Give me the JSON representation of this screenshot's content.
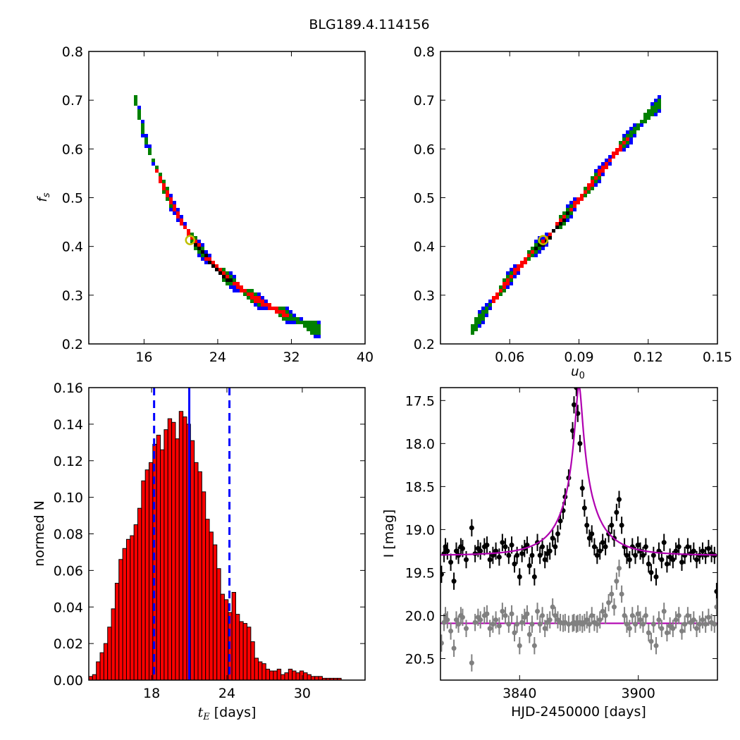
{
  "title": "BLG189.4.114156",
  "chart_data": [
    {
      "id": "ts_fs",
      "type": "heatmap",
      "xlim": [
        10,
        40
      ],
      "ylim": [
        0.2,
        0.8
      ],
      "xticks": [
        16,
        24,
        32,
        40
      ],
      "yticks": [
        0.2,
        0.3,
        0.4,
        0.5,
        0.6,
        0.7,
        0.8
      ],
      "xlabel": "",
      "ylabel": "f_s",
      "ridge": [
        [
          14.9,
          0.7
        ],
        [
          16,
          0.62
        ],
        [
          17,
          0.565
        ],
        [
          18,
          0.52
        ],
        [
          19,
          0.482
        ],
        [
          20,
          0.448
        ],
        [
          21,
          0.418
        ],
        [
          22,
          0.392
        ],
        [
          23,
          0.37
        ],
        [
          24,
          0.35
        ],
        [
          25,
          0.333
        ],
        [
          26,
          0.318
        ],
        [
          27,
          0.305
        ],
        [
          28,
          0.292
        ],
        [
          30,
          0.272
        ],
        [
          32,
          0.253
        ],
        [
          34,
          0.235
        ],
        [
          35,
          0.228
        ]
      ],
      "confidence_levels": [
        {
          "level": "outer",
          "color": "#0000ff"
        },
        {
          "level": "middle",
          "color": "#008000"
        },
        {
          "level": "inner",
          "color": "#ff0000"
        },
        {
          "level": "best",
          "color": "#000000"
        }
      ],
      "best_fit": [
        21.0,
        0.413
      ],
      "marker_color": "#bfbf00"
    },
    {
      "id": "u0_fs",
      "type": "heatmap",
      "xlim": [
        0.03,
        0.15
      ],
      "ylim": [
        0.2,
        0.8
      ],
      "xticks": [
        0.06,
        0.09,
        0.12,
        0.15
      ],
      "yticks": [
        0.2,
        0.3,
        0.4,
        0.5,
        0.6,
        0.7,
        0.8
      ],
      "xlabel": "u_0",
      "ylabel": "",
      "ridge": [
        [
          0.043,
          0.23
        ],
        [
          0.05,
          0.275
        ],
        [
          0.06,
          0.34
        ],
        [
          0.07,
          0.395
        ],
        [
          0.075,
          0.413
        ],
        [
          0.08,
          0.443
        ],
        [
          0.09,
          0.5
        ],
        [
          0.1,
          0.562
        ],
        [
          0.11,
          0.62
        ],
        [
          0.12,
          0.675
        ],
        [
          0.125,
          0.7
        ]
      ],
      "confidence_levels": [
        {
          "level": "outer",
          "color": "#0000ff"
        },
        {
          "level": "middle",
          "color": "#008000"
        },
        {
          "level": "inner",
          "color": "#ff0000"
        },
        {
          "level": "best",
          "color": "#000000"
        }
      ],
      "best_fit": [
        0.0745,
        0.413
      ],
      "marker_color": "#bfbf00"
    },
    {
      "id": "te_hist",
      "type": "bar",
      "xlim": [
        13,
        35
      ],
      "ylim": [
        0,
        0.16
      ],
      "xticks": [
        18,
        24,
        30
      ],
      "yticks": [
        0.0,
        0.02,
        0.04,
        0.06,
        0.08,
        0.1,
        0.12,
        0.14,
        0.16
      ],
      "ytick_labels": [
        "0.00",
        "0.02",
        "0.04",
        "0.06",
        "0.08",
        "0.10",
        "0.12",
        "0.14",
        "0.16"
      ],
      "xlabel": "t_E [days]",
      "ylabel": "normed N",
      "bin_start": 13.0,
      "bin_width": 0.3,
      "values": [
        0.002,
        0.003,
        0.01,
        0.015,
        0.02,
        0.029,
        0.039,
        0.053,
        0.066,
        0.072,
        0.077,
        0.079,
        0.085,
        0.094,
        0.109,
        0.115,
        0.119,
        0.129,
        0.134,
        0.126,
        0.137,
        0.143,
        0.141,
        0.132,
        0.147,
        0.144,
        0.14,
        0.131,
        0.119,
        0.114,
        0.103,
        0.088,
        0.081,
        0.074,
        0.061,
        0.047,
        0.044,
        0.037,
        0.048,
        0.036,
        0.032,
        0.031,
        0.029,
        0.021,
        0.012,
        0.01,
        0.009,
        0.006,
        0.005,
        0.005,
        0.006,
        0.003,
        0.004,
        0.006,
        0.005,
        0.004,
        0.005,
        0.004,
        0.003,
        0.002,
        0.002,
        0.002,
        0.001,
        0.001,
        0.001,
        0.001,
        0.001
      ],
      "bar_color": "#ff0000",
      "median": 21.0,
      "interval": [
        18.2,
        24.2
      ],
      "line_color": "#0000ff"
    },
    {
      "id": "lightcurve",
      "type": "scatter",
      "xlim": [
        3800,
        3940
      ],
      "ylim": [
        20.75,
        17.35
      ],
      "xticks": [
        3840,
        3900
      ],
      "yticks": [
        17.5,
        18.0,
        18.5,
        19.0,
        19.5,
        20.0,
        20.5
      ],
      "ytick_labels": [
        "17.5",
        "18.0",
        "18.5",
        "19.0",
        "19.5",
        "20.0",
        "20.5"
      ],
      "xlabel": "HJD-2450000 [days]",
      "ylabel": "I [mag]",
      "model": {
        "t0": 3870,
        "tE": 21.0,
        "u0": 0.0745,
        "fs": 0.413,
        "baseline": 19.3,
        "color": "#b000b0"
      },
      "residual_level": 20.09,
      "series": [
        {
          "color": "#000000",
          "x": [
            3800.5,
            3801.8,
            3802.5,
            3803.5,
            3805.2,
            3806.8,
            3808.0,
            3809.1,
            3810.3,
            3811.2,
            3813.0,
            3815.8,
            3817.5,
            3819.0,
            3820.2,
            3822.2,
            3823.5,
            3825.0,
            3826.5,
            3828.0,
            3829.7,
            3831.3,
            3832.8,
            3834.5,
            3836.0,
            3837.4,
            3838.7,
            3840.0,
            3841.2,
            3842.5,
            3843.8,
            3845.0,
            3846.3,
            3847.5,
            3849.0,
            3850.3,
            3851.5,
            3852.8,
            3854.0,
            3855.3,
            3856.7,
            3858.0,
            3859.3,
            3860.6,
            3862.0,
            3863.0,
            3864.8,
            3866.8,
            3867.5,
            3868.7,
            3869.4,
            3870.5,
            3871.7,
            3872.8,
            3874.0,
            3875.3,
            3876.5,
            3877.8,
            3879.2,
            3880.6,
            3882.0,
            3883.4,
            3885.0,
            3886.5,
            3887.8,
            3889.0,
            3890.3,
            3891.6,
            3893.0,
            3894.2,
            3895.6,
            3897.0,
            3898.5,
            3899.8,
            3901.0,
            3902.4,
            3903.8,
            3905.2,
            3906.5,
            3907.7,
            3909.0,
            3910.4,
            3911.8,
            3913.0,
            3914.5,
            3916.0,
            3917.5,
            3919.0,
            3920.5,
            3922.0,
            3923.5,
            3925.0,
            3926.5,
            3928.0,
            3929.5,
            3931.0,
            3932.5,
            3934.0,
            3935.5,
            3937.0,
            3938.5,
            3939.6
          ],
          "y": [
            19.52,
            19.28,
            19.2,
            19.25,
            19.38,
            19.6,
            19.25,
            19.3,
            19.2,
            19.22,
            19.35,
            18.98,
            19.28,
            19.22,
            19.25,
            19.2,
            19.18,
            19.35,
            19.3,
            19.25,
            19.32,
            19.15,
            19.2,
            19.3,
            19.18,
            19.4,
            19.3,
            19.55,
            19.28,
            19.22,
            19.18,
            19.42,
            19.3,
            19.55,
            19.15,
            19.3,
            19.2,
            19.35,
            19.28,
            19.25,
            19.1,
            19.2,
            19.05,
            18.9,
            18.78,
            18.62,
            18.4,
            17.85,
            17.55,
            17.35,
            17.65,
            18.0,
            18.52,
            18.75,
            18.95,
            19.1,
            19.05,
            19.2,
            19.3,
            19.25,
            19.15,
            19.2,
            19.05,
            18.95,
            19.1,
            18.8,
            18.65,
            18.95,
            19.2,
            19.3,
            19.35,
            19.2,
            19.3,
            19.18,
            19.25,
            19.3,
            19.2,
            19.4,
            19.5,
            19.3,
            19.55,
            19.25,
            19.35,
            19.15,
            19.4,
            19.32,
            19.35,
            19.25,
            19.2,
            19.38,
            19.3,
            19.2,
            19.28,
            19.25,
            19.35,
            19.3,
            19.25,
            19.3,
            19.22,
            19.28,
            19.3,
            19.72
          ],
          "err": 0.1
        },
        {
          "color": "#808080",
          "x": [
            3800.5,
            3801.8,
            3802.5,
            3803.5,
            3805.2,
            3806.8,
            3808.0,
            3809.1,
            3810.3,
            3811.2,
            3813.0,
            3815.8,
            3817.5,
            3819.0,
            3820.2,
            3822.2,
            3823.5,
            3825.0,
            3826.5,
            3828.0,
            3829.7,
            3831.3,
            3832.8,
            3834.5,
            3836.0,
            3837.4,
            3838.7,
            3840.0,
            3841.2,
            3842.5,
            3843.8,
            3845.0,
            3846.3,
            3847.5,
            3849.0,
            3850.3,
            3851.5,
            3852.8,
            3854.0,
            3855.3,
            3856.7,
            3858.0,
            3859.3,
            3860.6,
            3862.0,
            3863.0,
            3864.8,
            3866.8,
            3867.5,
            3868.7,
            3869.4,
            3870.5,
            3871.7,
            3872.8,
            3874.0,
            3875.3,
            3876.5,
            3877.8,
            3879.2,
            3880.6,
            3882.0,
            3883.4,
            3885.0,
            3886.5,
            3887.8,
            3889.0,
            3890.3,
            3891.6,
            3893.0,
            3894.2,
            3895.6,
            3897.0,
            3898.5,
            3899.8,
            3901.0,
            3902.4,
            3903.8,
            3905.2,
            3906.5,
            3907.7,
            3909.0,
            3910.4,
            3911.8,
            3913.0,
            3914.5,
            3916.0,
            3917.5,
            3919.0,
            3920.5,
            3922.0,
            3923.5,
            3925.0,
            3926.5,
            3928.0,
            3929.5,
            3931.0,
            3932.5,
            3934.0,
            3935.5,
            3937.0,
            3938.5,
            3939.6
          ],
          "y": [
            20.32,
            20.08,
            20.0,
            20.05,
            20.18,
            20.38,
            20.05,
            20.1,
            20.0,
            20.02,
            20.15,
            20.55,
            20.08,
            20.02,
            20.05,
            20.0,
            19.98,
            20.15,
            20.1,
            20.05,
            20.12,
            19.95,
            20.0,
            20.1,
            19.98,
            20.2,
            20.1,
            20.35,
            20.08,
            20.02,
            19.98,
            20.22,
            20.1,
            20.35,
            19.95,
            20.1,
            20.0,
            20.15,
            20.08,
            20.05,
            19.9,
            20.0,
            20.05,
            20.08,
            20.09,
            20.08,
            20.1,
            20.09,
            20.08,
            20.1,
            20.09,
            20.08,
            20.1,
            20.08,
            20.05,
            20.1,
            20.0,
            20.08,
            20.1,
            20.05,
            19.95,
            20.0,
            19.85,
            19.75,
            19.9,
            19.6,
            19.45,
            19.75,
            20.0,
            20.1,
            20.15,
            20.0,
            20.1,
            19.98,
            20.05,
            20.1,
            20.0,
            20.2,
            20.3,
            20.1,
            20.35,
            20.05,
            20.15,
            19.95,
            20.2,
            20.12,
            20.15,
            20.05,
            20.0,
            20.18,
            20.1,
            20.0,
            20.08,
            20.05,
            20.15,
            20.1,
            20.05,
            20.1,
            20.02,
            20.08,
            20.1,
            19.9
          ],
          "err": 0.1
        }
      ]
    }
  ]
}
